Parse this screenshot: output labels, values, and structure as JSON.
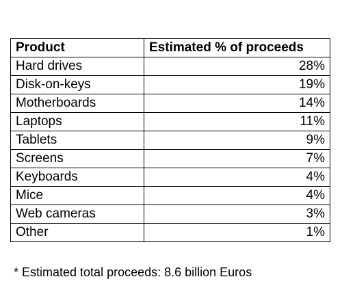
{
  "chart_data": {
    "type": "table",
    "columns": [
      "Product",
      "Estimated % of proceeds"
    ],
    "rows": [
      {
        "product": "Hard drives",
        "value": "28%"
      },
      {
        "product": "Disk-on-keys",
        "value": "19%"
      },
      {
        "product": "Motherboards",
        "value": "14%"
      },
      {
        "product": "Laptops",
        "value": "11%"
      },
      {
        "product": "Tablets",
        "value": "9%"
      },
      {
        "product": "Screens",
        "value": "7%"
      },
      {
        "product": "Keyboards",
        "value": "4%"
      },
      {
        "product": "Mice",
        "value": "4%"
      },
      {
        "product": "Web cameras",
        "value": "3%"
      },
      {
        "product": "Other",
        "value": "1%"
      }
    ],
    "footnote": "* Estimated total proceeds: 8.6 billion Euros"
  }
}
